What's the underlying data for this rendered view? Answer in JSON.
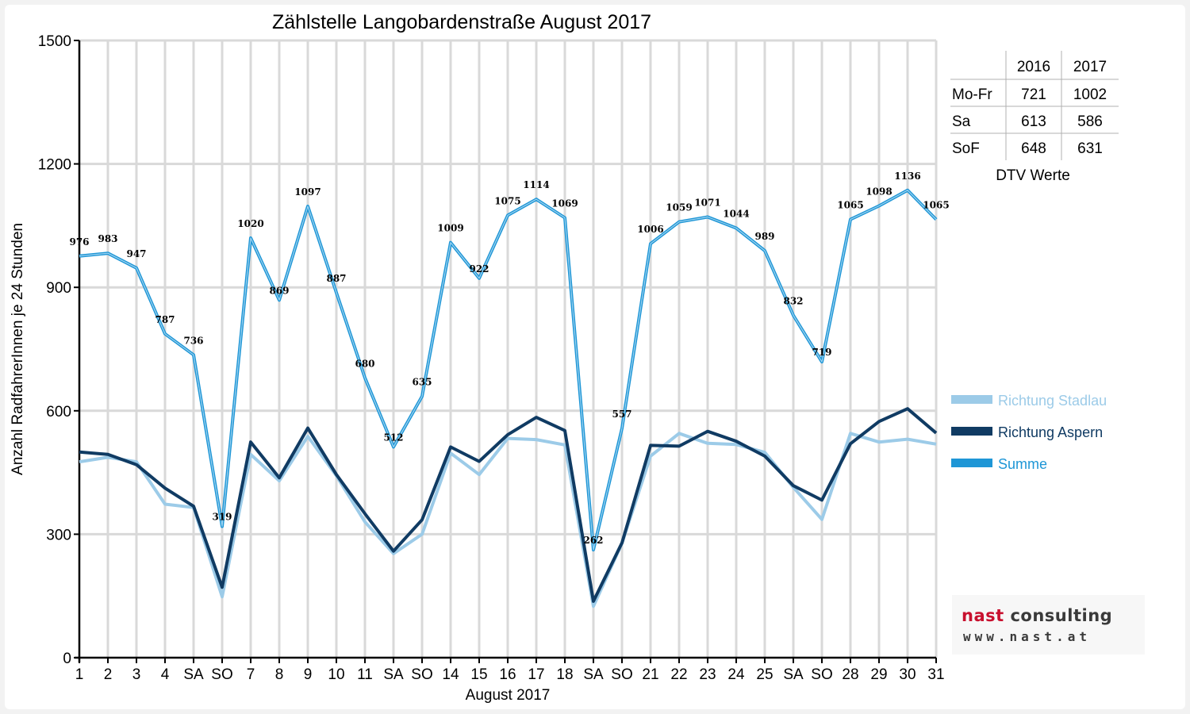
{
  "chart_data": {
    "type": "line",
    "title": "Zählstelle Langobardenstraße August 2017",
    "xlabel": "August 2017",
    "ylabel": "Anzahl RadfahrerInnen je 24 Stunden",
    "ylim": [
      0,
      1500
    ],
    "yticks": [
      "0",
      "300",
      "600",
      "900",
      "1200",
      "1500"
    ],
    "grid": true,
    "legend_position": "right",
    "categories": [
      "1",
      "2",
      "3",
      "4",
      "SA",
      "SO",
      "7",
      "8",
      "9",
      "10",
      "11",
      "SA",
      "SO",
      "14",
      "15",
      "16",
      "17",
      "18",
      "SA",
      "SO",
      "21",
      "22",
      "23",
      "24",
      "25",
      "SA",
      "SO",
      "28",
      "29",
      "30",
      "31"
    ],
    "category_colors": [
      "#000000",
      "#000000",
      "#000000",
      "#000000",
      "#000000",
      "#e00000",
      "#000000",
      "#000000",
      "#000000",
      "#000000",
      "#000000",
      "#000000",
      "#e00000",
      "#000000",
      "#e00000",
      "#000000",
      "#000000",
      "#000000",
      "#000000",
      "#e00000",
      "#000000",
      "#000000",
      "#000000",
      "#000000",
      "#000000",
      "#000000",
      "#e00000",
      "#000000",
      "#000000",
      "#000000",
      "#000000"
    ],
    "series": [
      {
        "name": "Richtung Stadlau",
        "color": "#9ccbe8",
        "values": [
          476,
          487,
          476,
          373,
          365,
          148,
          494,
          430,
          538,
          442,
          330,
          253,
          300,
          497,
          445,
          533,
          530,
          517,
          125,
          278,
          490,
          545,
          521,
          518,
          499,
          414,
          336,
          545,
          524,
          531,
          519
        ]
      },
      {
        "name": "Richtung Aspern",
        "color": "#103b63",
        "values": [
          500,
          494,
          469,
          412,
          368,
          171,
          524,
          437,
          558,
          445,
          350,
          259,
          335,
          512,
          477,
          542,
          584,
          552,
          137,
          279,
          516,
          514,
          550,
          526,
          490,
          418,
          383,
          520,
          574,
          605,
          546
        ]
      },
      {
        "name": "Summe",
        "color": "#1e96d6",
        "values": [
          976,
          983,
          947,
          787,
          736,
          319,
          1020,
          869,
          1097,
          887,
          680,
          512,
          635,
          1009,
          922,
          1075,
          1114,
          1069,
          262,
          557,
          1006,
          1059,
          1071,
          1044,
          989,
          832,
          719,
          1065,
          1098,
          1136,
          1065
        ]
      }
    ],
    "data_labels": [
      "976",
      "983",
      "947",
      "787",
      "736",
      "319",
      "1020",
      "869",
      "1097",
      "887",
      "680",
      "512",
      "635",
      "1009",
      "922",
      "1075",
      "1114",
      "1069",
      "262",
      "557",
      "1006",
      "1059",
      "1071",
      "1044",
      "989",
      "832",
      "719",
      "1065",
      "1098",
      "1136",
      "1065"
    ]
  },
  "dtv_table": {
    "headers": [
      "",
      "2016",
      "2017"
    ],
    "rows": [
      [
        "Mo-Fr",
        "721",
        "1002"
      ],
      [
        "Sa",
        "613",
        "586"
      ],
      [
        "SoF",
        "648",
        "631"
      ]
    ],
    "caption": "DTV Werte"
  },
  "logo": {
    "brand_word_1": "nast",
    "brand_word_2": "consulting",
    "url": "www.nast.at"
  }
}
